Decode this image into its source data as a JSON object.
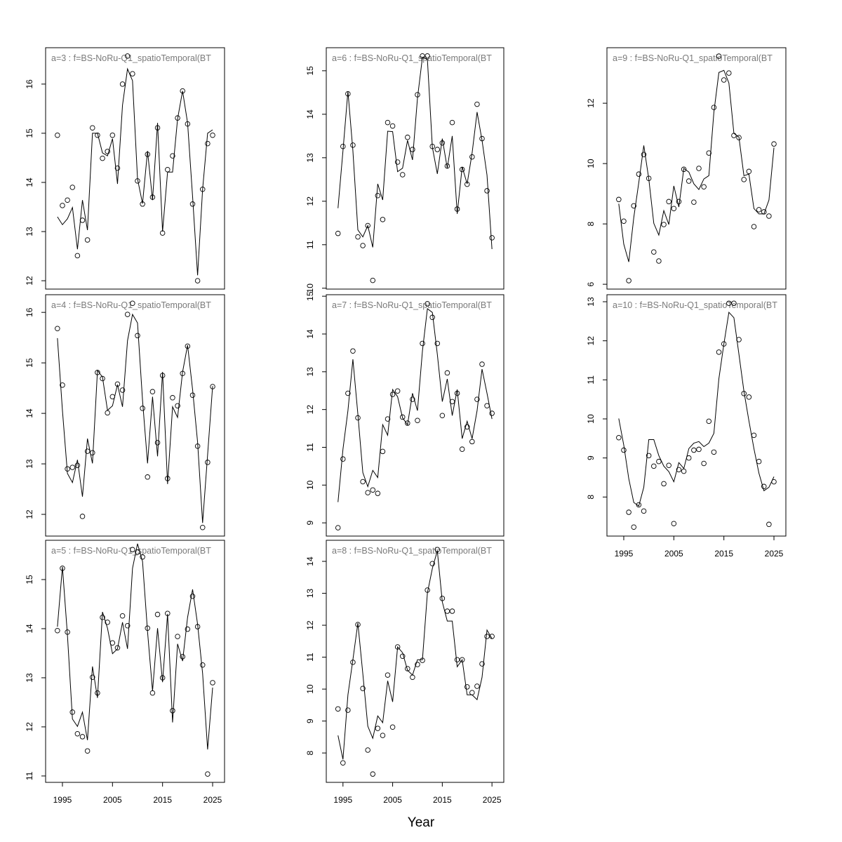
{
  "xlabel": "Year",
  "chart_data": [
    {
      "type": "line",
      "title": "a=3  :  f=BS-NoRu-Q1_spatioTemporal(BT",
      "x": [
        1994,
        1995,
        1996,
        1997,
        1998,
        1999,
        2000,
        2001,
        2002,
        2003,
        2004,
        2005,
        2006,
        2007,
        2008,
        2009,
        2010,
        2011,
        2012,
        2013,
        2014,
        2015,
        2016,
        2017,
        2018,
        2019,
        2020,
        2021,
        2022,
        2023,
        2024,
        2025
      ],
      "xlim": [
        1991.64,
        2027.38
      ],
      "ylim": [
        11.83,
        16.74
      ],
      "yticks": [
        12,
        13,
        14,
        15,
        16
      ],
      "series": [
        {
          "style": "points",
          "color": "#000000",
          "values": [
            14.96,
            13.53,
            13.64,
            13.9,
            12.51,
            13.23,
            12.83,
            15.11,
            14.96,
            14.49,
            14.63,
            14.96,
            14.29,
            16.0,
            16.57,
            16.21,
            14.03,
            13.56,
            14.57,
            13.7,
            15.11,
            12.97,
            14.26,
            14.54,
            15.31,
            15.86,
            15.19,
            13.56,
            12.0,
            13.86,
            14.79,
            14.96
          ]
        },
        {
          "style": "line",
          "color": "#000000",
          "values": [
            13.3,
            13.14,
            13.26,
            13.49,
            12.64,
            13.64,
            13.03,
            15.0,
            15.0,
            14.6,
            14.54,
            14.89,
            13.97,
            15.57,
            16.31,
            16.07,
            14.07,
            13.57,
            14.64,
            13.64,
            15.21,
            13.0,
            14.21,
            14.21,
            15.29,
            15.86,
            15.21,
            13.71,
            12.11,
            13.86,
            15.0,
            15.07
          ]
        }
      ]
    },
    {
      "type": "line",
      "title": "a=4  :  f=BS-NoRu-Q1_spatioTemporal(BT",
      "x": [
        1994,
        1995,
        1996,
        1997,
        1998,
        1999,
        2000,
        2001,
        2002,
        2003,
        2004,
        2005,
        2006,
        2007,
        2008,
        2009,
        2010,
        2011,
        2012,
        2013,
        2014,
        2015,
        2016,
        2017,
        2018,
        2019,
        2020,
        2021,
        2022,
        2023,
        2024,
        2025
      ],
      "xlim": [
        1991.64,
        2027.38
      ],
      "ylim": [
        11.57,
        16.35
      ],
      "yticks": [
        12,
        13,
        14,
        15,
        16
      ],
      "series": [
        {
          "style": "points",
          "color": "#000000",
          "values": [
            15.68,
            14.56,
            12.9,
            12.93,
            12.97,
            11.96,
            13.25,
            13.22,
            14.81,
            14.69,
            14.01,
            14.33,
            14.58,
            14.46,
            15.96,
            16.18,
            15.54,
            14.1,
            12.74,
            14.43,
            13.42,
            14.75,
            12.71,
            14.31,
            14.15,
            14.79,
            15.33,
            14.36,
            13.35,
            11.74,
            13.03,
            14.53
          ]
        },
        {
          "style": "line",
          "color": "#000000",
          "values": [
            15.49,
            14.06,
            12.81,
            12.63,
            13.08,
            12.35,
            13.5,
            13.01,
            14.85,
            14.72,
            14.06,
            14.15,
            14.57,
            14.13,
            15.44,
            15.96,
            15.79,
            14.26,
            13.01,
            14.33,
            13.15,
            14.82,
            12.6,
            14.13,
            13.92,
            14.82,
            15.35,
            14.47,
            13.43,
            11.83,
            13.18,
            14.54
          ]
        }
      ]
    },
    {
      "type": "line",
      "title": "a=5  :  f=BS-NoRu-Q1_spatioTemporal(BT",
      "x": [
        1994,
        1995,
        1996,
        1997,
        1998,
        1999,
        2000,
        2001,
        2002,
        2003,
        2004,
        2005,
        2006,
        2007,
        2008,
        2009,
        2010,
        2011,
        2012,
        2013,
        2014,
        2015,
        2016,
        2017,
        2018,
        2019,
        2020,
        2021,
        2022,
        2023,
        2024,
        2025
      ],
      "xlim": [
        1991.64,
        2027.38
      ],
      "xticks": [
        1995,
        2005,
        2015,
        2025
      ],
      "ylim": [
        10.87,
        15.8
      ],
      "yticks": [
        11,
        12,
        13,
        14,
        15
      ],
      "series": [
        {
          "style": "points",
          "color": "#000000",
          "values": [
            13.96,
            15.23,
            13.93,
            12.3,
            11.86,
            11.8,
            11.51,
            13.01,
            12.69,
            14.23,
            14.13,
            13.71,
            13.61,
            14.26,
            14.06,
            15.61,
            15.56,
            15.46,
            14.01,
            12.69,
            14.29,
            13.0,
            14.31,
            12.33,
            13.84,
            13.43,
            13.99,
            14.66,
            14.04,
            13.26,
            11.04,
            12.9
          ]
        },
        {
          "style": "line",
          "color": "#000000",
          "values": [
            14.04,
            15.26,
            13.87,
            12.16,
            12.01,
            12.3,
            11.73,
            13.23,
            12.59,
            14.34,
            14.01,
            13.49,
            13.59,
            14.13,
            13.59,
            15.23,
            15.73,
            15.37,
            13.94,
            12.73,
            14.01,
            12.91,
            14.3,
            12.09,
            13.69,
            13.34,
            14.23,
            14.8,
            14.09,
            13.09,
            11.54,
            12.8
          ]
        }
      ]
    },
    {
      "type": "line",
      "title": "a=6  :  f=BS-NoRu-Q1_spatioTemporal(BT",
      "x": [
        1994,
        1995,
        1996,
        1997,
        1998,
        1999,
        2000,
        2001,
        2002,
        2003,
        2004,
        2005,
        2006,
        2007,
        2008,
        2009,
        2010,
        2011,
        2012,
        2013,
        2014,
        2015,
        2016,
        2017,
        2018,
        2019,
        2020,
        2021,
        2022,
        2023,
        2024,
        2025
      ],
      "xlim": [
        1991.64,
        2027.38
      ],
      "ylim": [
        9.98,
        15.53
      ],
      "yticks": [
        10,
        11,
        12,
        13,
        14,
        15
      ],
      "series": [
        {
          "style": "points",
          "color": "#000000",
          "values": [
            11.26,
            13.26,
            14.47,
            13.29,
            11.18,
            10.98,
            11.44,
            10.18,
            12.13,
            11.58,
            13.81,
            13.73,
            12.9,
            12.61,
            13.47,
            13.19,
            14.45,
            15.34,
            15.34,
            13.26,
            13.19,
            13.34,
            12.81,
            13.81,
            11.82,
            12.73,
            12.39,
            13.02,
            14.23,
            13.44,
            12.24,
            11.16
          ]
        },
        {
          "style": "line",
          "color": "#000000",
          "values": [
            11.84,
            13.16,
            14.53,
            13.16,
            11.34,
            11.18,
            11.44,
            10.94,
            12.4,
            12.03,
            13.61,
            13.6,
            12.68,
            12.76,
            13.4,
            12.95,
            14.37,
            15.31,
            15.26,
            13.24,
            12.63,
            13.44,
            12.76,
            13.5,
            11.71,
            12.79,
            12.4,
            13.11,
            14.05,
            13.4,
            12.6,
            10.9
          ]
        }
      ]
    },
    {
      "type": "line",
      "title": "a=7  :  f=BS-NoRu-Q1_spatioTemporal(BT",
      "x": [
        1994,
        1995,
        1996,
        1997,
        1998,
        1999,
        2000,
        2001,
        2002,
        2003,
        2004,
        2005,
        2006,
        2007,
        2008,
        2009,
        2010,
        2011,
        2012,
        2013,
        2014,
        2015,
        2016,
        2017,
        2018,
        2019,
        2020,
        2021,
        2022,
        2023,
        2024,
        2025
      ],
      "xlim": [
        1991.64,
        2027.38
      ],
      "ylim": [
        8.65,
        15.04
      ],
      "yticks": [
        9,
        10,
        11,
        12,
        13,
        14,
        15
      ],
      "series": [
        {
          "style": "points",
          "color": "#000000",
          "values": [
            8.87,
            10.69,
            12.43,
            13.55,
            11.78,
            10.09,
            9.8,
            9.87,
            9.78,
            10.89,
            11.75,
            12.4,
            12.49,
            11.8,
            11.64,
            12.27,
            11.71,
            13.75,
            14.8,
            14.44,
            13.75,
            11.84,
            12.97,
            12.21,
            12.43,
            10.95,
            11.54,
            11.15,
            12.27,
            13.2,
            12.1,
            11.9
          ]
        },
        {
          "style": "line",
          "color": "#000000",
          "values": [
            9.55,
            10.95,
            11.97,
            13.33,
            11.88,
            10.33,
            9.96,
            10.39,
            10.2,
            11.6,
            11.32,
            12.53,
            12.34,
            11.78,
            11.6,
            12.43,
            11.97,
            13.55,
            14.67,
            14.57,
            13.46,
            12.21,
            12.81,
            11.84,
            12.53,
            11.23,
            11.69,
            11.23,
            11.97,
            13.07,
            12.43,
            11.75
          ]
        }
      ]
    },
    {
      "type": "line",
      "title": "a=8  :  f=BS-NoRu-Q1_spatioTemporal(BT",
      "x": [
        1994,
        1995,
        1996,
        1997,
        1998,
        1999,
        2000,
        2001,
        2002,
        2003,
        2004,
        2005,
        2006,
        2007,
        2008,
        2009,
        2010,
        2011,
        2012,
        2013,
        2014,
        2015,
        2016,
        2017,
        2018,
        2019,
        2020,
        2021,
        2022,
        2023,
        2024,
        2025
      ],
      "xlim": [
        1991.64,
        2027.38
      ],
      "xticks": [
        1995,
        2005,
        2015,
        2025
      ],
      "ylim": [
        7.08,
        14.66
      ],
      "yticks": [
        8,
        9,
        10,
        11,
        12,
        13,
        14
      ],
      "series": [
        {
          "style": "points",
          "color": "#000000",
          "values": [
            9.38,
            7.69,
            9.34,
            10.84,
            12.02,
            10.02,
            8.09,
            7.34,
            8.77,
            8.55,
            10.44,
            8.81,
            11.32,
            11.03,
            10.64,
            10.37,
            10.77,
            10.9,
            13.1,
            13.93,
            14.37,
            12.84,
            12.44,
            12.44,
            10.92,
            10.92,
            10.07,
            9.89,
            10.09,
            10.79,
            11.65,
            11.65
          ]
        },
        {
          "style": "line",
          "color": "#000000",
          "values": [
            8.55,
            7.8,
            9.82,
            10.92,
            12.07,
            10.48,
            8.84,
            8.46,
            9.16,
            8.95,
            10.26,
            9.6,
            11.32,
            11.14,
            10.59,
            10.44,
            10.92,
            10.92,
            13.01,
            13.78,
            14.33,
            12.73,
            12.13,
            12.13,
            10.7,
            10.92,
            9.82,
            9.82,
            9.67,
            10.37,
            11.85,
            11.58
          ]
        }
      ]
    },
    {
      "type": "line",
      "title": "a=9  :  f=BS-NoRu-Q1_spatioTemporal(BT",
      "x": [
        1994,
        1995,
        1996,
        1997,
        1998,
        1999,
        2000,
        2001,
        2002,
        2003,
        2004,
        2005,
        2006,
        2007,
        2008,
        2009,
        2010,
        2011,
        2012,
        2013,
        2014,
        2015,
        2016,
        2017,
        2018,
        2019,
        2020,
        2021,
        2022,
        2023,
        2024,
        2025
      ],
      "xlim": [
        1991.64,
        2027.38
      ],
      "ylim": [
        5.84,
        13.84
      ],
      "yticks": [
        6,
        8,
        10,
        12
      ],
      "series": [
        {
          "style": "points",
          "color": "#000000",
          "values": [
            8.81,
            8.09,
            6.12,
            8.6,
            9.65,
            10.3,
            9.51,
            7.07,
            6.77,
            7.98,
            8.74,
            8.51,
            8.74,
            9.81,
            9.42,
            8.72,
            9.84,
            9.23,
            10.35,
            11.86,
            13.56,
            12.77,
            13.0,
            10.93,
            10.86,
            9.47,
            9.74,
            7.91,
            8.47,
            8.4,
            8.26,
            10.65
          ]
        },
        {
          "style": "line",
          "color": "#000000",
          "values": [
            8.67,
            7.33,
            6.74,
            8.21,
            9.37,
            10.6,
            9.49,
            8.02,
            7.63,
            8.44,
            7.98,
            9.26,
            8.56,
            9.84,
            9.72,
            9.33,
            9.14,
            9.49,
            9.6,
            11.7,
            13.02,
            13.09,
            12.67,
            11.0,
            10.88,
            9.6,
            9.65,
            8.51,
            8.33,
            8.33,
            8.79,
            10.53
          ]
        }
      ]
    },
    {
      "type": "line",
      "title": "a=10  :  f=BS-NoRu-Q1_spatioTemporal(BT",
      "x": [
        1994,
        1995,
        1996,
        1997,
        1998,
        1999,
        2000,
        2001,
        2002,
        2003,
        2004,
        2005,
        2006,
        2007,
        2008,
        2009,
        2010,
        2011,
        2012,
        2013,
        2014,
        2015,
        2016,
        2017,
        2018,
        2019,
        2020,
        2021,
        2022,
        2023,
        2024,
        2025
      ],
      "xlim": [
        1991.64,
        2027.38
      ],
      "xticks": [
        1995,
        2005,
        2015,
        2025
      ],
      "ylim": [
        7.0,
        13.18
      ],
      "yticks": [
        8,
        9,
        10,
        11,
        12,
        13
      ],
      "series": [
        {
          "style": "points",
          "color": "#000000",
          "values": [
            9.52,
            9.2,
            7.61,
            7.23,
            7.8,
            7.64,
            9.06,
            8.79,
            8.91,
            8.34,
            8.81,
            7.32,
            8.7,
            8.66,
            9.0,
            9.2,
            9.22,
            8.86,
            9.94,
            9.15,
            11.71,
            11.92,
            12.96,
            12.96,
            12.03,
            10.65,
            10.56,
            9.58,
            8.91,
            8.27,
            7.3,
            8.39
          ]
        },
        {
          "style": "line",
          "color": "#000000",
          "values": [
            10.01,
            9.33,
            8.47,
            7.86,
            7.77,
            8.25,
            9.47,
            9.47,
            9.06,
            8.79,
            8.65,
            8.39,
            8.88,
            8.73,
            9.24,
            9.38,
            9.42,
            9.29,
            9.38,
            9.63,
            11.03,
            11.92,
            12.73,
            12.59,
            11.66,
            10.71,
            9.95,
            9.24,
            8.61,
            8.16,
            8.25,
            8.52
          ]
        }
      ]
    }
  ]
}
